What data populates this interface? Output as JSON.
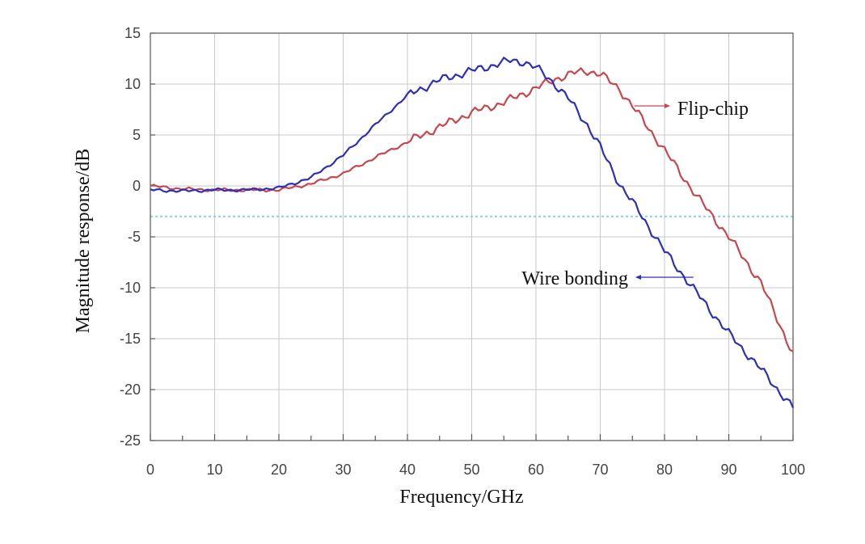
{
  "chart_data": {
    "type": "line",
    "xlabel": "Frequency/GHz",
    "ylabel": "Magnitude response/dB",
    "xlim": [
      0,
      100
    ],
    "ylim": [
      -25,
      15
    ],
    "xticks": [
      0,
      10,
      20,
      30,
      40,
      50,
      60,
      70,
      80,
      90,
      100
    ],
    "yticks": [
      15,
      10,
      5,
      0,
      -5,
      -10,
      -15,
      -20,
      -25
    ],
    "grid": true,
    "reference_line": {
      "y": -3,
      "style": "dotted",
      "color": "#7fd4e6"
    },
    "series": [
      {
        "name": "Flip-chip",
        "color": "#c8474f",
        "x": [
          0,
          5,
          10,
          15,
          20,
          25,
          30,
          35,
          40,
          45,
          50,
          55,
          60,
          63,
          66,
          68,
          70,
          73,
          76,
          80,
          85,
          90,
          95,
          100
        ],
        "y": [
          0,
          -0.3,
          -0.4,
          -0.4,
          -0.4,
          0.2,
          1.2,
          2.8,
          4.3,
          5.8,
          7.2,
          8.2,
          9.6,
          10.5,
          11.1,
          11.3,
          11.0,
          9.5,
          7.0,
          3.5,
          -1.0,
          -5.0,
          -9.5,
          -16.5
        ]
      },
      {
        "name": "Wire bonding",
        "color": "#2e2eb8",
        "x": [
          0,
          5,
          10,
          15,
          20,
          25,
          30,
          35,
          40,
          45,
          50,
          53,
          56,
          58,
          60,
          62,
          65,
          68,
          70,
          73,
          76,
          80,
          85,
          90,
          95,
          100
        ],
        "y": [
          -0.4,
          -0.5,
          -0.4,
          -0.4,
          -0.2,
          0.8,
          3.0,
          6.0,
          8.9,
          10.4,
          11.3,
          11.8,
          12.3,
          12.2,
          11.6,
          10.6,
          8.6,
          6.0,
          3.8,
          0.2,
          -2.5,
          -6.4,
          -10.5,
          -14.5,
          -18.0,
          -21.8
        ]
      }
    ],
    "annotations": [
      {
        "text": "Flip-chip",
        "series": "Flip-chip"
      },
      {
        "text": "Wire bonding",
        "series": "Wire bonding"
      }
    ]
  }
}
